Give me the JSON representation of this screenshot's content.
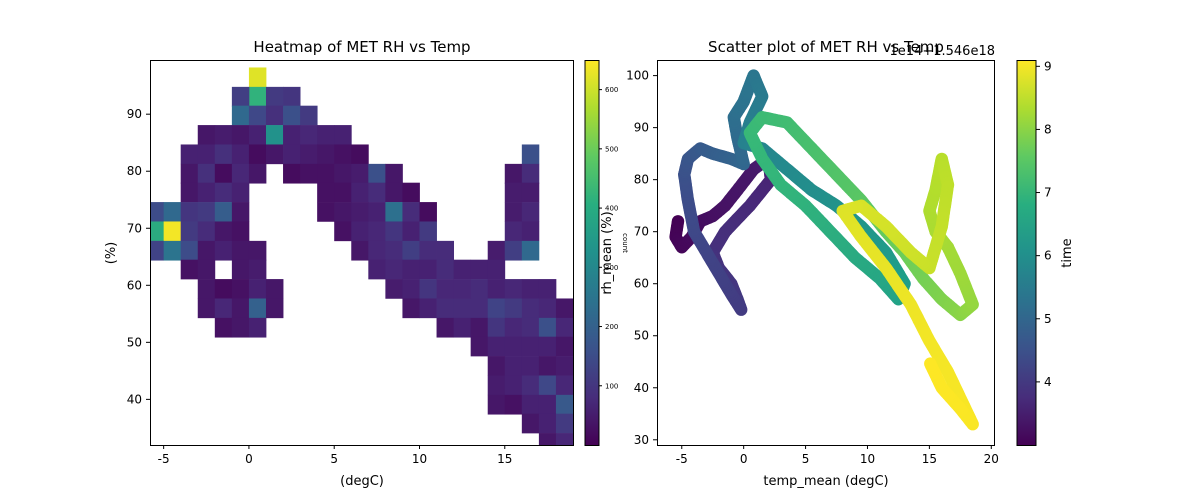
{
  "figure": {
    "background": "#ffffff"
  },
  "chart_data": [
    {
      "type": "heatmap",
      "title": "Heatmap of MET RH vs Temp",
      "xlabel": "(degC)",
      "ylabel": "(%)",
      "xlim": [
        -5.8,
        19.0
      ],
      "ylim": [
        32.0,
        99.5
      ],
      "xticks": [
        -5,
        0,
        5,
        10,
        15
      ],
      "yticks": [
        40,
        50,
        60,
        70,
        80,
        90
      ],
      "bin_width_x": 1.0,
      "bin_height_y": 3.38,
      "colormap": "viridis",
      "cells": [
        [
          0.5,
          96.5,
          620
        ],
        [
          0.5,
          93.1,
          420
        ],
        [
          -0.5,
          93.1,
          120
        ],
        [
          1.5,
          93.1,
          110
        ],
        [
          2.5,
          93.1,
          100
        ],
        [
          -0.5,
          89.8,
          220
        ],
        [
          0.5,
          89.8,
          140
        ],
        [
          1.5,
          89.8,
          90
        ],
        [
          2.5,
          89.8,
          160
        ],
        [
          3.5,
          89.8,
          110
        ],
        [
          -2.5,
          86.4,
          40
        ],
        [
          -1.5,
          86.4,
          50
        ],
        [
          -0.5,
          86.4,
          40
        ],
        [
          0.5,
          86.4,
          60
        ],
        [
          1.5,
          86.4,
          330
        ],
        [
          2.5,
          86.4,
          60
        ],
        [
          3.5,
          86.4,
          70
        ],
        [
          4.5,
          86.4,
          60
        ],
        [
          5.5,
          86.4,
          60
        ],
        [
          -3.5,
          83.0,
          60
        ],
        [
          -2.5,
          83.0,
          60
        ],
        [
          -1.5,
          83.0,
          90
        ],
        [
          -0.5,
          83.0,
          60
        ],
        [
          0.5,
          83.0,
          20
        ],
        [
          1.5,
          83.0,
          40
        ],
        [
          2.5,
          83.0,
          60
        ],
        [
          3.5,
          83.0,
          50
        ],
        [
          4.5,
          83.0,
          40
        ],
        [
          5.5,
          83.0,
          30
        ],
        [
          6.5,
          83.0,
          20
        ],
        [
          16.5,
          83.0,
          160
        ],
        [
          -3.5,
          79.6,
          40
        ],
        [
          -2.5,
          79.6,
          90
        ],
        [
          -1.5,
          79.6,
          20
        ],
        [
          -0.5,
          79.6,
          70
        ],
        [
          0.5,
          79.6,
          40
        ],
        [
          2.5,
          79.6,
          20
        ],
        [
          3.5,
          79.6,
          30
        ],
        [
          4.5,
          79.6,
          30
        ],
        [
          5.5,
          79.6,
          40
        ],
        [
          6.5,
          79.6,
          50
        ],
        [
          7.5,
          79.6,
          160
        ],
        [
          8.5,
          79.6,
          40
        ],
        [
          15.5,
          79.6,
          40
        ],
        [
          16.5,
          79.6,
          80
        ],
        [
          -3.5,
          76.3,
          40
        ],
        [
          -2.5,
          76.3,
          60
        ],
        [
          -1.5,
          76.3,
          80
        ],
        [
          -0.5,
          76.3,
          60
        ],
        [
          4.5,
          76.3,
          30
        ],
        [
          5.5,
          76.3,
          30
        ],
        [
          6.5,
          76.3,
          60
        ],
        [
          7.5,
          76.3,
          80
        ],
        [
          8.5,
          76.3,
          40
        ],
        [
          9.5,
          76.3,
          20
        ],
        [
          15.5,
          76.3,
          50
        ],
        [
          16.5,
          76.3,
          50
        ],
        [
          -5.5,
          72.9,
          150
        ],
        [
          -4.5,
          72.9,
          220
        ],
        [
          -3.5,
          72.9,
          100
        ],
        [
          -2.5,
          72.9,
          110
        ],
        [
          -1.5,
          72.9,
          190
        ],
        [
          -0.5,
          72.9,
          40
        ],
        [
          4.5,
          72.9,
          30
        ],
        [
          5.5,
          72.9,
          40
        ],
        [
          6.5,
          72.9,
          50
        ],
        [
          7.5,
          72.9,
          60
        ],
        [
          8.5,
          72.9,
          240
        ],
        [
          9.5,
          72.9,
          80
        ],
        [
          10.5,
          72.9,
          20
        ],
        [
          15.5,
          72.9,
          50
        ],
        [
          16.5,
          72.9,
          70
        ],
        [
          -5.5,
          69.5,
          400
        ],
        [
          -4.5,
          69.5,
          640
        ],
        [
          -3.5,
          69.5,
          110
        ],
        [
          -2.5,
          69.5,
          80
        ],
        [
          -1.5,
          69.5,
          40
        ],
        [
          -0.5,
          69.5,
          30
        ],
        [
          5.5,
          69.5,
          30
        ],
        [
          6.5,
          69.5,
          60
        ],
        [
          7.5,
          69.5,
          70
        ],
        [
          8.5,
          69.5,
          100
        ],
        [
          9.5,
          69.5,
          60
        ],
        [
          10.5,
          69.5,
          110
        ],
        [
          15.5,
          69.5,
          70
        ],
        [
          16.5,
          69.5,
          60
        ],
        [
          -5.5,
          66.1,
          130
        ],
        [
          -4.5,
          66.1,
          250
        ],
        [
          -3.5,
          66.1,
          150
        ],
        [
          -2.5,
          66.1,
          40
        ],
        [
          -1.5,
          66.1,
          60
        ],
        [
          -0.5,
          66.1,
          40
        ],
        [
          0.5,
          66.1,
          40
        ],
        [
          6.5,
          66.1,
          40
        ],
        [
          7.5,
          66.1,
          70
        ],
        [
          8.5,
          66.1,
          80
        ],
        [
          9.5,
          66.1,
          120
        ],
        [
          10.5,
          66.1,
          80
        ],
        [
          11.5,
          66.1,
          80
        ],
        [
          14.5,
          66.1,
          50
        ],
        [
          15.5,
          66.1,
          120
        ],
        [
          16.5,
          66.1,
          220
        ],
        [
          -3.5,
          62.8,
          30
        ],
        [
          -2.5,
          62.8,
          40
        ],
        [
          -0.5,
          62.8,
          40
        ],
        [
          0.5,
          62.8,
          50
        ],
        [
          7.5,
          62.8,
          60
        ],
        [
          8.5,
          62.8,
          70
        ],
        [
          9.5,
          62.8,
          60
        ],
        [
          10.5,
          62.8,
          60
        ],
        [
          11.5,
          62.8,
          80
        ],
        [
          12.5,
          62.8,
          60
        ],
        [
          13.5,
          62.8,
          60
        ],
        [
          14.5,
          62.8,
          60
        ],
        [
          -2.5,
          59.4,
          40
        ],
        [
          -1.5,
          59.4,
          20
        ],
        [
          -0.5,
          59.4,
          30
        ],
        [
          0.5,
          59.4,
          60
        ],
        [
          1.5,
          59.4,
          40
        ],
        [
          8.5,
          59.4,
          50
        ],
        [
          9.5,
          59.4,
          60
        ],
        [
          10.5,
          59.4,
          100
        ],
        [
          11.5,
          59.4,
          70
        ],
        [
          12.5,
          59.4,
          70
        ],
        [
          13.5,
          59.4,
          80
        ],
        [
          14.5,
          59.4,
          60
        ],
        [
          15.5,
          59.4,
          70
        ],
        [
          16.5,
          59.4,
          60
        ],
        [
          17.5,
          59.4,
          60
        ],
        [
          -2.5,
          56.0,
          40
        ],
        [
          -1.5,
          56.0,
          70
        ],
        [
          -0.5,
          56.0,
          40
        ],
        [
          0.5,
          56.0,
          200
        ],
        [
          1.5,
          56.0,
          40
        ],
        [
          9.5,
          56.0,
          40
        ],
        [
          10.5,
          56.0,
          60
        ],
        [
          11.5,
          56.0,
          80
        ],
        [
          12.5,
          56.0,
          80
        ],
        [
          13.5,
          56.0,
          80
        ],
        [
          14.5,
          56.0,
          130
        ],
        [
          15.5,
          56.0,
          110
        ],
        [
          16.5,
          56.0,
          80
        ],
        [
          17.5,
          56.0,
          70
        ],
        [
          18.5,
          56.0,
          40
        ],
        [
          -1.5,
          52.6,
          30
        ],
        [
          -0.5,
          52.6,
          40
        ],
        [
          0.5,
          52.6,
          60
        ],
        [
          11.5,
          52.6,
          40
        ],
        [
          12.5,
          52.6,
          60
        ],
        [
          13.5,
          52.6,
          40
        ],
        [
          14.5,
          52.6,
          100
        ],
        [
          15.5,
          52.6,
          70
        ],
        [
          16.5,
          52.6,
          80
        ],
        [
          17.5,
          52.6,
          160
        ],
        [
          18.5,
          52.6,
          70
        ],
        [
          13.5,
          49.3,
          40
        ],
        [
          14.5,
          49.3,
          60
        ],
        [
          15.5,
          49.3,
          60
        ],
        [
          16.5,
          49.3,
          60
        ],
        [
          17.5,
          49.3,
          60
        ],
        [
          18.5,
          49.3,
          40
        ],
        [
          14.5,
          45.9,
          40
        ],
        [
          15.5,
          45.9,
          60
        ],
        [
          16.5,
          45.9,
          60
        ],
        [
          17.5,
          45.9,
          40
        ],
        [
          18.5,
          45.9,
          50
        ],
        [
          14.5,
          42.5,
          50
        ],
        [
          15.5,
          42.5,
          60
        ],
        [
          16.5,
          42.5,
          80
        ],
        [
          17.5,
          42.5,
          140
        ],
        [
          18.5,
          42.5,
          70
        ],
        [
          14.5,
          39.1,
          40
        ],
        [
          15.5,
          39.1,
          30
        ],
        [
          16.5,
          39.1,
          60
        ],
        [
          17.5,
          39.1,
          60
        ],
        [
          18.5,
          39.1,
          180
        ],
        [
          16.5,
          35.8,
          40
        ],
        [
          17.5,
          35.8,
          60
        ],
        [
          18.5,
          35.8,
          110
        ],
        [
          17.5,
          32.4,
          40
        ],
        [
          18.5,
          32.4,
          70
        ]
      ],
      "colorbar": {
        "label": "count",
        "overlay_label": "rh_mean (%)",
        "vmin": 0,
        "vmax": 650,
        "ticks": [
          100,
          200,
          300,
          400,
          500,
          600
        ]
      }
    },
    {
      "type": "scatter",
      "title": "Scatter plot of MET RH vs Temp",
      "offset_text": "1e14+1.546e18",
      "xlabel": "temp_mean (degC)",
      "ylabel": "",
      "xlim": [
        -7,
        20.3
      ],
      "ylim": [
        29,
        103
      ],
      "xticks": [
        -5,
        0,
        5,
        10,
        15,
        20
      ],
      "yticks": [
        30,
        40,
        50,
        60,
        70,
        80,
        90,
        100
      ],
      "colormap": "viridis",
      "color_key": "time",
      "path": [
        [
          -5.3,
          72,
          3.0
        ],
        [
          -5.5,
          69,
          3.05
        ],
        [
          -5.0,
          67,
          3.1
        ],
        [
          -4.2,
          69,
          3.15
        ],
        [
          -3.5,
          72,
          3.2
        ],
        [
          -2.5,
          73,
          3.25
        ],
        [
          -1.5,
          75,
          3.3
        ],
        [
          -0.5,
          78,
          3.35
        ],
        [
          0.8,
          82,
          3.4
        ],
        [
          2.0,
          84,
          3.5
        ],
        [
          2.2,
          80,
          3.6
        ],
        [
          0.5,
          75,
          3.7
        ],
        [
          -1.5,
          70,
          3.8
        ],
        [
          -2.5,
          66,
          3.85
        ],
        [
          -2.0,
          63,
          3.9
        ],
        [
          -1.0,
          60,
          3.95
        ],
        [
          -0.5,
          57,
          4.0
        ],
        [
          -0.2,
          55,
          4.05
        ],
        [
          -1.0,
          58,
          4.1
        ],
        [
          -2.5,
          64,
          4.2
        ],
        [
          -4.0,
          70,
          4.3
        ],
        [
          -4.5,
          76,
          4.4
        ],
        [
          -4.8,
          81,
          4.5
        ],
        [
          -4.5,
          84,
          4.6
        ],
        [
          -3.5,
          86,
          4.7
        ],
        [
          -2.5,
          85,
          4.8
        ],
        [
          -1.0,
          84,
          4.9
        ],
        [
          0.0,
          83,
          5.0
        ],
        [
          -0.5,
          88,
          5.1
        ],
        [
          -0.8,
          92,
          5.2
        ],
        [
          0.0,
          95,
          5.3
        ],
        [
          0.8,
          100,
          5.4
        ],
        [
          1.5,
          96,
          5.5
        ],
        [
          0.5,
          91,
          5.6
        ],
        [
          0.0,
          87,
          5.7
        ],
        [
          1.5,
          86,
          5.8
        ],
        [
          3.5,
          82,
          5.9
        ],
        [
          5.5,
          78,
          6.0
        ],
        [
          7.5,
          75,
          6.1
        ],
        [
          9.5,
          71,
          6.2
        ],
        [
          11.5,
          66,
          6.3
        ],
        [
          13.0,
          60,
          6.4
        ],
        [
          12.5,
          57,
          6.5
        ],
        [
          11.0,
          61,
          6.6
        ],
        [
          9.0,
          65,
          6.7
        ],
        [
          7.0,
          70,
          6.8
        ],
        [
          5.0,
          75,
          6.9
        ],
        [
          3.0,
          79,
          7.0
        ],
        [
          1.5,
          84,
          7.05
        ],
        [
          0.5,
          89,
          7.1
        ],
        [
          1.5,
          92,
          7.15
        ],
        [
          3.5,
          91,
          7.2
        ],
        [
          5.5,
          86,
          7.3
        ],
        [
          7.5,
          81,
          7.4
        ],
        [
          9.5,
          76,
          7.5
        ],
        [
          11.5,
          70,
          7.6
        ],
        [
          13.0,
          66,
          7.7
        ],
        [
          14.5,
          61,
          7.8
        ],
        [
          16.0,
          57,
          7.9
        ],
        [
          17.5,
          54,
          8.0
        ],
        [
          18.5,
          56,
          8.1
        ],
        [
          17.5,
          62,
          8.2
        ],
        [
          16.5,
          67,
          8.25
        ],
        [
          15.5,
          70,
          8.3
        ],
        [
          15.0,
          74,
          8.35
        ],
        [
          15.5,
          78,
          8.4
        ],
        [
          16.0,
          84,
          8.45
        ],
        [
          16.5,
          79,
          8.5
        ],
        [
          16.0,
          71,
          8.55
        ],
        [
          15.0,
          63,
          8.6
        ],
        [
          13.5,
          66,
          8.65
        ],
        [
          11.5,
          71,
          8.7
        ],
        [
          9.5,
          75,
          8.75
        ],
        [
          8.0,
          74,
          8.8
        ],
        [
          9.5,
          69,
          8.85
        ],
        [
          11.5,
          63,
          8.9
        ],
        [
          13.5,
          56,
          8.95
        ],
        [
          15.0,
          49,
          9.0
        ],
        [
          16.5,
          43,
          9.02
        ],
        [
          17.5,
          38,
          9.04
        ],
        [
          18.5,
          33,
          9.06
        ],
        [
          17.5,
          36,
          9.08
        ],
        [
          16.0,
          40,
          9.09
        ],
        [
          15.0,
          45,
          9.1
        ]
      ],
      "colorbar": {
        "label": "time",
        "vmin": 3.0,
        "vmax": 9.1,
        "ticks": [
          4,
          5,
          6,
          7,
          8,
          9
        ]
      }
    }
  ]
}
